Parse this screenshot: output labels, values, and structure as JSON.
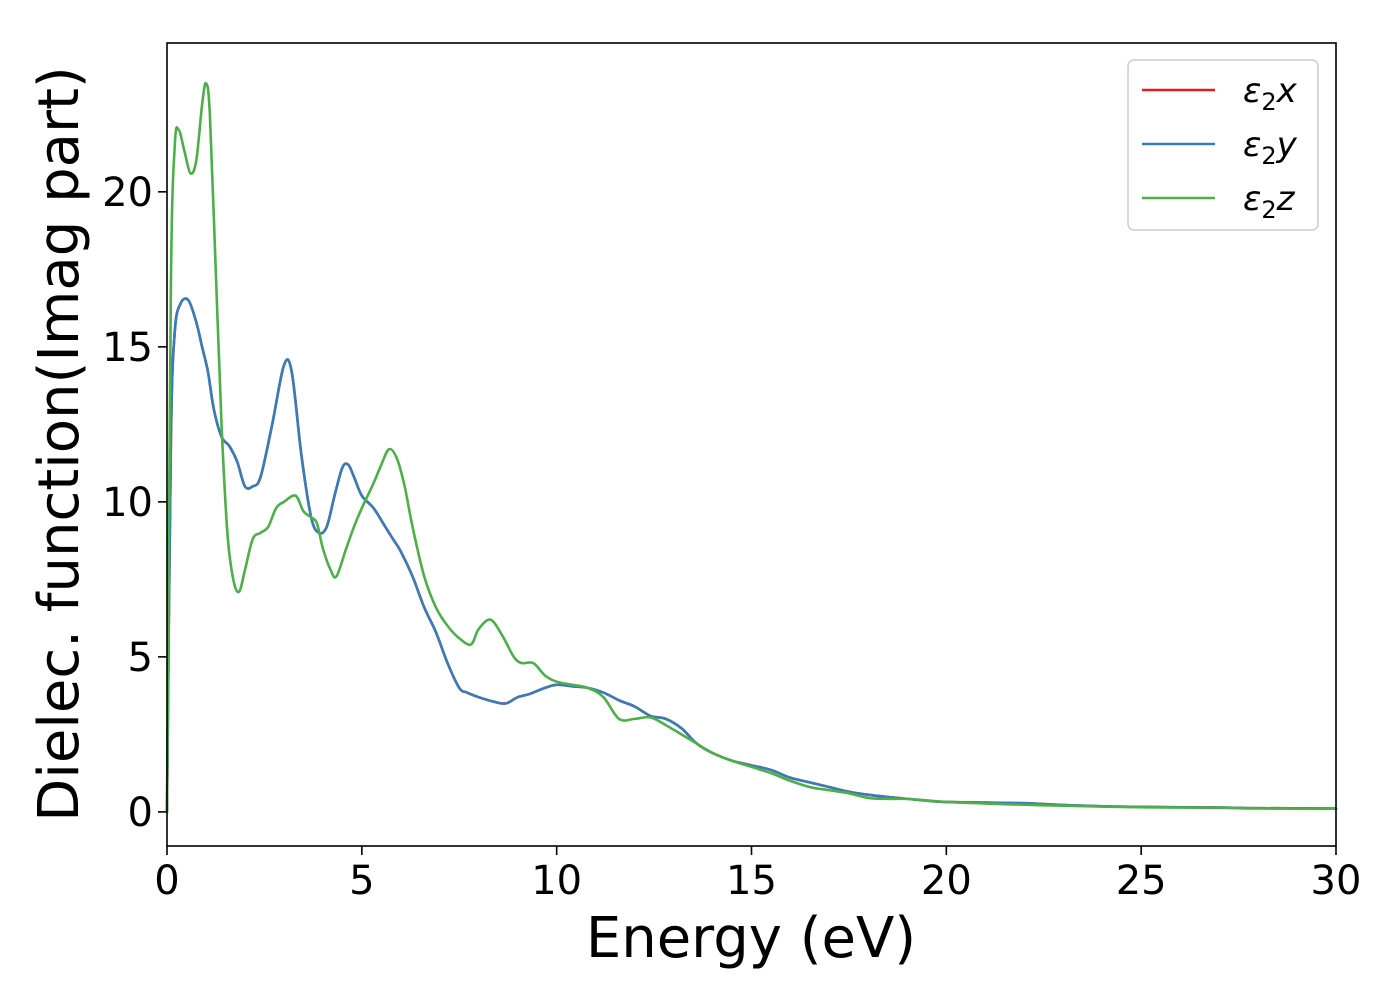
{
  "chart_data": {
    "type": "line",
    "xlabel": "Energy (eV)",
    "ylabel": "Dielec. function(Imag part)",
    "xlim": [
      0,
      30
    ],
    "ylim": [
      -1.1,
      24.8
    ],
    "xticks": [
      0,
      5,
      10,
      15,
      20,
      25,
      30
    ],
    "yticks": [
      0,
      5,
      10,
      15,
      20
    ],
    "grid": false,
    "legend_position": "top-right",
    "series": [
      {
        "name": "ε2x",
        "label_base": "ε",
        "label_sub": "2",
        "label_var": "x",
        "color": "#e41a1c",
        "x": [
          0,
          0.1,
          0.2,
          0.35,
          0.55,
          0.75,
          0.9,
          1.05,
          1.2,
          1.4,
          1.6,
          1.8,
          2.0,
          2.2,
          2.4,
          2.7,
          3.0,
          3.2,
          3.45,
          3.7,
          3.9,
          4.1,
          4.3,
          4.5,
          4.65,
          4.8,
          5.0,
          5.3,
          5.6,
          5.8,
          6.0,
          6.3,
          6.6,
          6.9,
          7.2,
          7.5,
          7.7,
          8.0,
          8.4,
          8.7,
          9.0,
          9.3,
          9.7,
          10.0,
          10.4,
          10.8,
          11.2,
          11.6,
          12.0,
          12.4,
          12.8,
          13.2,
          13.6,
          14.0,
          14.5,
          15.0,
          15.5,
          16.0,
          16.5,
          17.0,
          17.5,
          18.0,
          18.5,
          19.0,
          19.5,
          20.0,
          21.0,
          22.0,
          23.0,
          24.0,
          25.0,
          27.0,
          28.0,
          30.0
        ],
        "y": [
          0,
          12.0,
          15.5,
          16.4,
          16.5,
          15.8,
          15.0,
          14.2,
          13.0,
          12.1,
          11.8,
          11.3,
          10.5,
          10.5,
          10.8,
          12.5,
          14.4,
          14.2,
          11.5,
          9.5,
          9.0,
          9.2,
          10.2,
          11.1,
          11.2,
          10.8,
          10.2,
          9.8,
          9.2,
          8.8,
          8.4,
          7.6,
          6.6,
          5.8,
          4.8,
          4.0,
          3.85,
          3.7,
          3.55,
          3.5,
          3.7,
          3.8,
          4.0,
          4.1,
          4.05,
          4.0,
          3.85,
          3.6,
          3.4,
          3.1,
          3.0,
          2.7,
          2.2,
          1.9,
          1.65,
          1.5,
          1.35,
          1.1,
          0.95,
          0.8,
          0.65,
          0.55,
          0.48,
          0.42,
          0.36,
          0.32,
          0.3,
          0.28,
          0.22,
          0.18,
          0.16,
          0.14,
          0.12,
          0.11
        ]
      },
      {
        "name": "ε2y",
        "label_base": "ε",
        "label_sub": "2",
        "label_var": "y",
        "color": "#377eb8",
        "x": [
          0,
          0.1,
          0.2,
          0.35,
          0.55,
          0.75,
          0.9,
          1.05,
          1.2,
          1.4,
          1.6,
          1.8,
          2.0,
          2.2,
          2.4,
          2.7,
          3.0,
          3.2,
          3.45,
          3.7,
          3.9,
          4.1,
          4.3,
          4.5,
          4.65,
          4.8,
          5.0,
          5.3,
          5.6,
          5.8,
          6.0,
          6.3,
          6.6,
          6.9,
          7.2,
          7.5,
          7.7,
          8.0,
          8.4,
          8.7,
          9.0,
          9.3,
          9.7,
          10.0,
          10.4,
          10.8,
          11.2,
          11.6,
          12.0,
          12.4,
          12.8,
          13.2,
          13.6,
          14.0,
          14.5,
          15.0,
          15.5,
          16.0,
          16.5,
          17.0,
          17.5,
          18.0,
          18.5,
          19.0,
          19.5,
          20.0,
          21.0,
          22.0,
          23.0,
          24.0,
          25.0,
          27.0,
          28.0,
          30.0
        ],
        "y": [
          0,
          12.0,
          15.5,
          16.4,
          16.5,
          15.8,
          15.0,
          14.2,
          13.0,
          12.1,
          11.8,
          11.3,
          10.5,
          10.5,
          10.8,
          12.5,
          14.4,
          14.2,
          11.5,
          9.5,
          9.0,
          9.2,
          10.2,
          11.1,
          11.2,
          10.8,
          10.2,
          9.8,
          9.2,
          8.8,
          8.4,
          7.6,
          6.6,
          5.8,
          4.8,
          4.0,
          3.85,
          3.7,
          3.55,
          3.5,
          3.7,
          3.8,
          4.0,
          4.1,
          4.05,
          4.0,
          3.85,
          3.6,
          3.4,
          3.1,
          3.0,
          2.7,
          2.2,
          1.9,
          1.65,
          1.5,
          1.35,
          1.1,
          0.95,
          0.8,
          0.65,
          0.55,
          0.48,
          0.42,
          0.36,
          0.32,
          0.3,
          0.28,
          0.22,
          0.18,
          0.16,
          0.14,
          0.12,
          0.11
        ]
      },
      {
        "name": "ε2z",
        "label_base": "ε",
        "label_sub": "2",
        "label_var": "z",
        "color": "#4daf4a",
        "x": [
          0,
          0.1,
          0.2,
          0.3,
          0.45,
          0.6,
          0.75,
          0.9,
          1.0,
          1.1,
          1.25,
          1.4,
          1.55,
          1.7,
          1.85,
          2.0,
          2.2,
          2.4,
          2.6,
          2.8,
          3.0,
          3.3,
          3.5,
          3.7,
          3.85,
          4.0,
          4.2,
          4.35,
          4.6,
          4.8,
          5.0,
          5.3,
          5.5,
          5.7,
          5.9,
          6.1,
          6.3,
          6.6,
          6.9,
          7.2,
          7.5,
          7.8,
          8.0,
          8.3,
          8.6,
          8.9,
          9.1,
          9.4,
          9.7,
          10.0,
          10.4,
          10.8,
          11.2,
          11.6,
          12.0,
          12.4,
          12.8,
          13.2,
          13.6,
          14.0,
          14.5,
          15.0,
          15.5,
          16.0,
          16.5,
          17.0,
          17.5,
          18.0,
          18.5,
          19.0,
          19.5,
          20.0,
          21.0,
          22.0,
          23.0,
          24.0,
          25.0,
          27.0,
          28.0,
          30.0
        ],
        "y": [
          0,
          17.0,
          21.5,
          22.0,
          21.3,
          20.6,
          21.0,
          22.8,
          23.5,
          22.5,
          17.5,
          12.5,
          9.0,
          7.5,
          7.1,
          7.8,
          8.8,
          9.0,
          9.2,
          9.8,
          10.0,
          10.2,
          9.7,
          9.5,
          9.3,
          8.5,
          7.8,
          7.6,
          8.5,
          9.2,
          9.8,
          10.6,
          11.2,
          11.7,
          11.4,
          10.5,
          9.2,
          7.6,
          6.6,
          6.0,
          5.6,
          5.4,
          5.9,
          6.2,
          5.7,
          5.0,
          4.8,
          4.8,
          4.4,
          4.2,
          4.1,
          4.0,
          3.7,
          3.0,
          3.0,
          3.05,
          2.8,
          2.5,
          2.2,
          1.9,
          1.65,
          1.45,
          1.25,
          1.0,
          0.8,
          0.7,
          0.6,
          0.45,
          0.42,
          0.42,
          0.37,
          0.32,
          0.27,
          0.23,
          0.2,
          0.17,
          0.15,
          0.13,
          0.11,
          0.1
        ]
      }
    ]
  }
}
